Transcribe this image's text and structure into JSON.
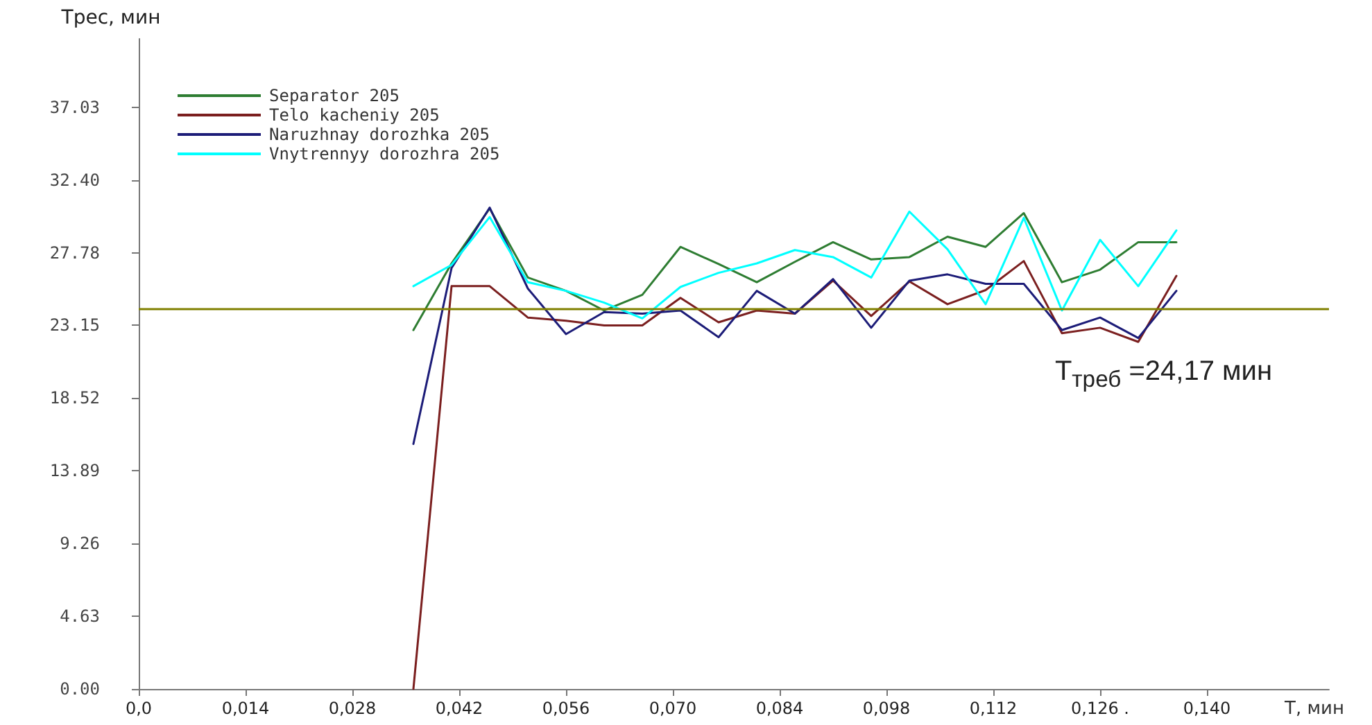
{
  "chart_data": {
    "type": "line",
    "xlabel": "T, мин",
    "ylabel": "Трес, мин",
    "x": [
      0.036,
      0.041,
      0.046,
      0.051,
      0.056,
      0.061,
      0.066,
      0.071,
      0.076,
      0.081,
      0.086,
      0.091,
      0.096,
      0.101,
      0.106,
      0.111,
      0.116,
      0.121,
      0.126,
      0.131,
      0.136
    ],
    "series": [
      {
        "name": "Separator 205",
        "color": "#2e7d32",
        "values": [
          22.85,
          27.1,
          30.6,
          26.2,
          25.35,
          24.1,
          25.1,
          28.15,
          27.06,
          25.9,
          27.2,
          28.45,
          27.35,
          27.5,
          28.8,
          28.15,
          30.3,
          25.9,
          26.7,
          28.45,
          28.45
        ]
      },
      {
        "name": "Telo kacheniy 205",
        "color": "#7b1f1f",
        "values": [
          0,
          25.65,
          25.65,
          23.65,
          23.45,
          23.15,
          23.15,
          24.9,
          23.35,
          24.1,
          23.9,
          26.0,
          23.75,
          25.95,
          24.5,
          25.4,
          27.25,
          22.65,
          23.0,
          22.1,
          26.3
        ]
      },
      {
        "name": "Naruzhnay dorozhka 205",
        "color": "#1c1c78",
        "values": [
          15.6,
          26.8,
          30.65,
          25.5,
          22.6,
          24.0,
          23.9,
          24.1,
          22.4,
          25.35,
          23.9,
          26.1,
          23.0,
          26.0,
          26.4,
          25.8,
          25.8,
          22.85,
          23.65,
          22.35,
          25.35
        ]
      },
      {
        "name": "Vnytrennyy dorozhra 205",
        "color": "#00ffff",
        "values": [
          25.65,
          27.0,
          30.05,
          25.9,
          25.35,
          24.6,
          23.6,
          25.6,
          26.5,
          27.1,
          27.95,
          27.5,
          26.2,
          30.4,
          28.0,
          24.5,
          30.0,
          24.1,
          28.6,
          25.65,
          29.2
        ]
      }
    ],
    "xlim": [
      0,
      0.156
    ],
    "xticks": [
      {
        "value": 0,
        "label": "0,0"
      },
      {
        "value": 0.014,
        "label": "0,014"
      },
      {
        "value": 0.028,
        "label": "0,028"
      },
      {
        "value": 0.042,
        "label": "0,042"
      },
      {
        "value": 0.056,
        "label": "0,056"
      },
      {
        "value": 0.07,
        "label": "0,070"
      },
      {
        "value": 0.084,
        "label": "0,084"
      },
      {
        "value": 0.098,
        "label": "0,098"
      },
      {
        "value": 0.112,
        "label": "0,112"
      },
      {
        "value": 0.126,
        "label": "0,126 ."
      },
      {
        "value": 0.14,
        "label": "0,140"
      }
    ],
    "ylim": [
      0,
      41.4
    ],
    "yticks": [
      {
        "value": 0,
        "label": "0.00"
      },
      4.63,
      9.26,
      13.89,
      18.52,
      23.15,
      27.78,
      {
        "value": 32.4,
        "label": "32.40"
      },
      37.03
    ],
    "ref_lines": [
      {
        "axis": "y",
        "value": 24.17,
        "label": "T$_{треб}$ =24,17 мин",
        "color": "#808000"
      }
    ],
    "grid": false,
    "legend": "top left",
    "marker": "none",
    "line_style": "solid"
  }
}
